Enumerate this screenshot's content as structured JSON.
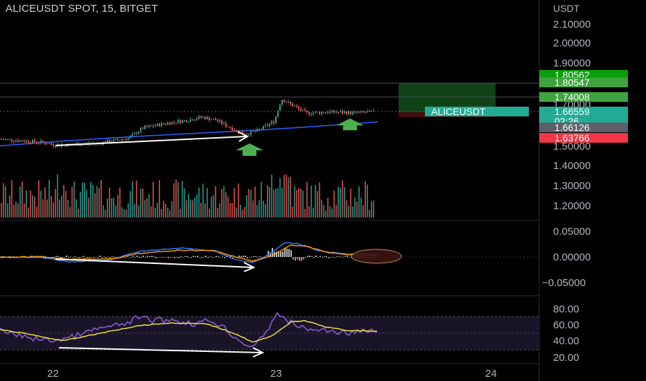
{
  "header": {
    "title": "ALICEUSDT SPOT, 15, BITGET",
    "currency": "USDT"
  },
  "colors": {
    "background": "#000000",
    "up": "#26a69a",
    "down": "#ef5350",
    "ma_line": "#2962ff",
    "target_zone": "#1b5e20",
    "stop_zone": "#4a0d0d",
    "macd_line": "#2979ff",
    "signal_line": "#ff9800",
    "rsi_line": "#7e57c2",
    "rsi_ma": "#ffeb3b",
    "annotation_arrow": "#ffffff",
    "buy_arrow": "#4caf50"
  },
  "chart_data": [
    {
      "type": "candlestick",
      "name": "price",
      "ylim": [
        1.16,
        2.16
      ],
      "yticks": [
        "2.10000",
        "2.00000",
        "1.90000",
        "1.70000",
        "1.50000",
        "1.40000",
        "1.30000",
        "1.20000"
      ],
      "price_tags": [
        {
          "label": "1.80562",
          "color": "#0a9e0a"
        },
        {
          "label": "1.80547",
          "color": "#3fa33f"
        },
        {
          "label": "1.74008",
          "color": "#3fa33f"
        },
        {
          "label": "1.66559",
          "color": "#22ab94",
          "symbol": "ALICEUSDT",
          "countdown": "02:26"
        },
        {
          "label": "1.66126",
          "color": "#5d606b"
        },
        {
          "label": "1.63766",
          "color": "#f23645"
        }
      ],
      "x_labels": [
        "22",
        "23",
        "24"
      ],
      "annotations": [
        "bullish divergence arrow",
        "buy arrow",
        "buy arrow"
      ]
    },
    {
      "type": "bar",
      "name": "volume"
    },
    {
      "type": "line",
      "name": "macd",
      "ylim": [
        -0.06,
        0.06
      ],
      "yticks": [
        "0.05000",
        "0.00000",
        "−0.05000"
      ]
    },
    {
      "type": "line",
      "name": "rsi",
      "ylim": [
        10,
        90
      ],
      "yticks": [
        "80.00",
        "60.00",
        "40.00",
        "20.00"
      ]
    }
  ]
}
